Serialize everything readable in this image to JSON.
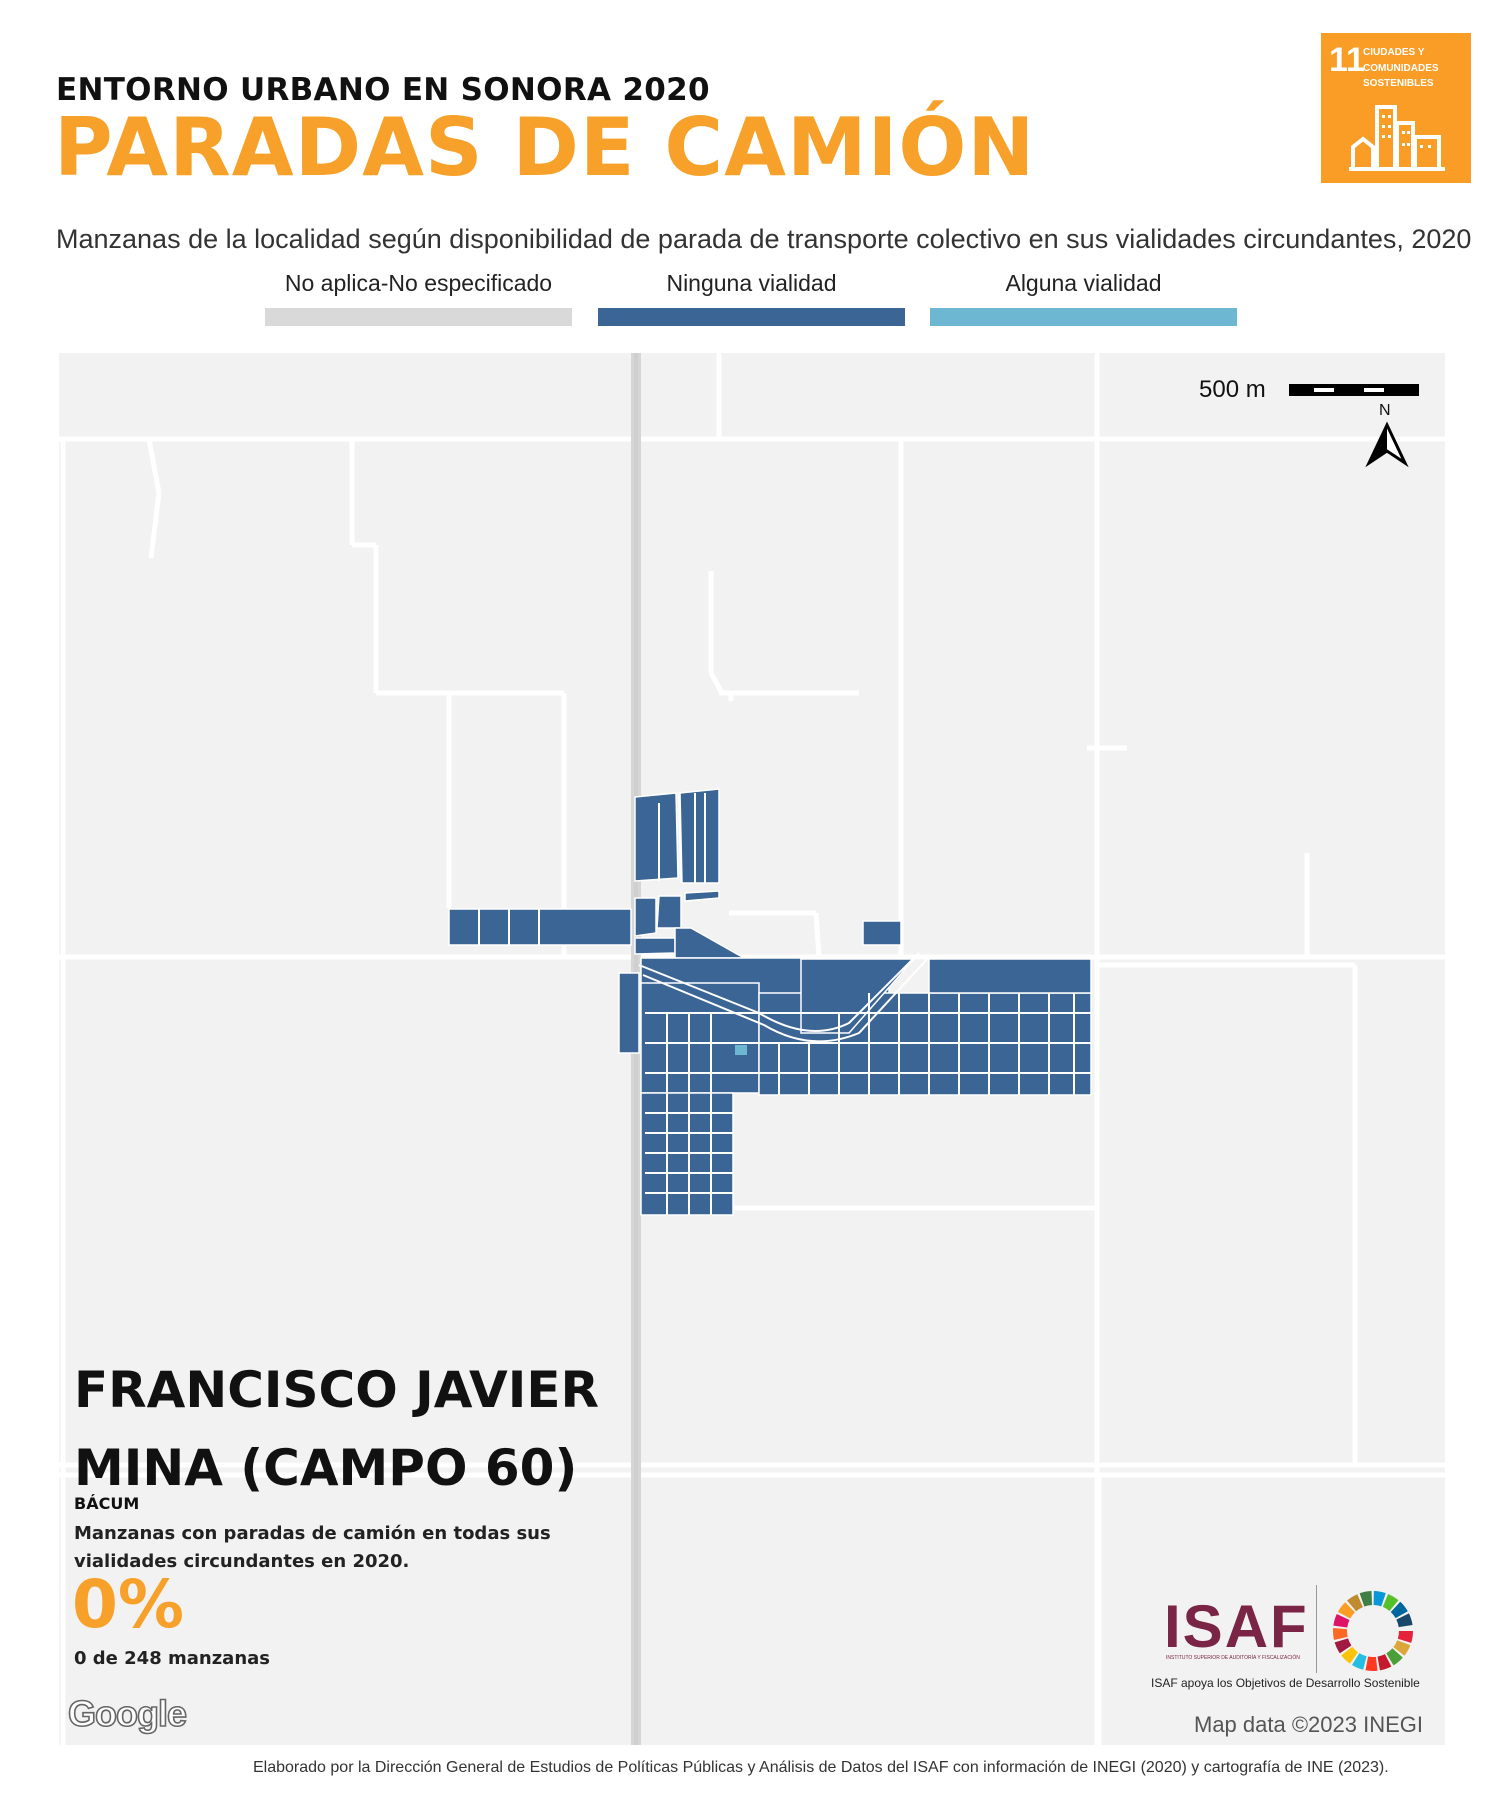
{
  "header": {
    "supertitle": "ENTORNO URBANO EN SONORA 2020",
    "title": "PARADAS DE CAMIÓN",
    "subtitle": "Manzanas de la localidad según disponibilidad de parada de transporte colectivo en sus vialidades circundantes, 2020"
  },
  "sdg_badge": {
    "number": "11",
    "text": "CIUDADES Y COMUNIDADES SOSTENIBLES",
    "color": "#f99d26"
  },
  "legend": {
    "items": [
      {
        "label": "No aplica-No especificado",
        "color": "#d9d9d9"
      },
      {
        "label": "Ninguna vialidad",
        "color": "#3a6594"
      },
      {
        "label": "Alguna vialidad",
        "color": "#6db7d3"
      }
    ]
  },
  "map": {
    "scale_label": "500 m",
    "north_label": "N",
    "background": "#f2f2f2",
    "road_color": "#ffffff",
    "highway_color": "#d6d6d6",
    "block_color": "#3a6594",
    "highlight_color": "#6db7d3",
    "attribution": "Map data ©2023 INEGI",
    "provider": "Google"
  },
  "locality": {
    "name": "FRANCISCO JAVIER MINA (CAMPO 60)",
    "name_line1": "FRANCISCO JAVIER",
    "name_line2": "MINA (CAMPO 60)",
    "municipio": "BÁCUM",
    "stat_description": "Manzanas con paradas de camión en todas sus vialidades circundantes en 2020.",
    "percent": "0%",
    "count_text": "0 de 248 manzanas"
  },
  "isaf": {
    "logo_text": "ISAF",
    "small_text": "INSTITUTO SUPERIOR DE AUDITORÍA Y FISCALIZACIÓN",
    "caption": "ISAF apoya los Objetivos de Desarrollo Sostenible"
  },
  "footer": {
    "text": "Elaborado por la Dirección General de Estudios de Políticas Públicas y Análisis de Datos del ISAF con información de INEGI (2020) y cartografía de INE (2023)."
  }
}
